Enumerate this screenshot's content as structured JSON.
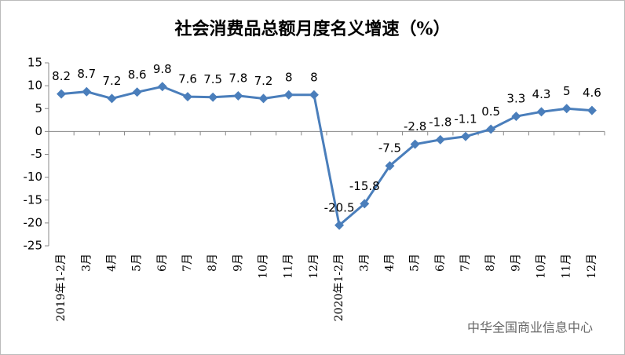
{
  "chart_data": {
    "type": "line",
    "title": "社会消费品总额月度名义增速（%）",
    "categories": [
      "2019年1-2月",
      "3月",
      "4月",
      "5月",
      "6月",
      "7月",
      "8月",
      "9月",
      "10月",
      "11月",
      "12月",
      "2020年1-2月",
      "3月",
      "4月",
      "5月",
      "6月",
      "7月",
      "8月",
      "9月",
      "10月",
      "11月",
      "12月"
    ],
    "series": [
      {
        "name": "社会消费品总额月度名义增速",
        "color": "#4a7ebb",
        "values": [
          8.2,
          8.7,
          7.2,
          8.6,
          9.8,
          7.6,
          7.5,
          7.8,
          7.2,
          8,
          8,
          -20.5,
          -15.8,
          -7.5,
          -2.8,
          -1.8,
          -1.1,
          0.5,
          3.3,
          4.3,
          5,
          4.6
        ]
      }
    ],
    "ylim": [
      -25,
      15
    ],
    "yticks": [
      15,
      10,
      5,
      0,
      -5,
      -10,
      -15,
      -20,
      -25
    ],
    "grid": false,
    "legend": false,
    "watermark": "中华全国商业信息中心"
  }
}
